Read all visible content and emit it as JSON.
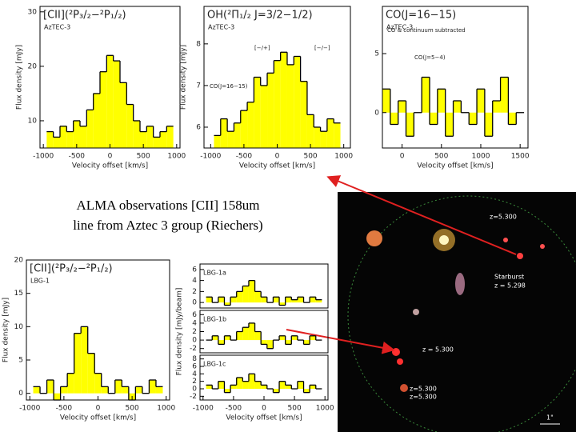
{
  "chart_data": [
    {
      "type": "step",
      "title": "[CII](²P₃/₂−²P₁/₂)",
      "subtitle": "AzTEC-3",
      "xlabel": "Velocity offset [km/s]",
      "ylabel": "Flux density [mJy]",
      "x": [
        -900,
        -800,
        -700,
        -600,
        -500,
        -400,
        -300,
        -200,
        -100,
        0,
        100,
        200,
        300,
        400,
        500,
        600,
        700,
        800,
        900
      ],
      "values": [
        8,
        7,
        9,
        8,
        10,
        9,
        12,
        15,
        19,
        22,
        21,
        17,
        13,
        10,
        8,
        9,
        7,
        8,
        9
      ],
      "xlim": [
        -1050,
        1050
      ],
      "ylim": [
        5,
        31
      ],
      "xticks": [
        -1000,
        -500,
        0,
        500,
        1000
      ],
      "yticks": [
        10,
        20,
        30
      ],
      "color": "#ffff00"
    },
    {
      "type": "step",
      "title": "OH(²Π₁/₂ J=3/2−1/2)",
      "subtitle": "AzTEC-3",
      "xlabel": "Velocity offset [km/s]",
      "ylabel": "Flux density [mJy]",
      "annotations": [
        "[−/+]",
        "[−/−]",
        "CO(J=16−15)"
      ],
      "x": [
        -900,
        -800,
        -700,
        -600,
        -500,
        -400,
        -300,
        -200,
        -100,
        0,
        100,
        200,
        300,
        400,
        500,
        600,
        700,
        800,
        900
      ],
      "values": [
        5.8,
        6.2,
        5.9,
        6.1,
        6.4,
        6.6,
        7.2,
        7.0,
        7.3,
        7.6,
        7.8,
        7.5,
        7.7,
        7.1,
        6.3,
        6.0,
        5.9,
        6.2,
        6.1
      ],
      "xlim": [
        -1100,
        1100
      ],
      "ylim": [
        5.5,
        8.9
      ],
      "xticks": [
        -1000,
        -500,
        0,
        500,
        1000
      ],
      "yticks": [
        6,
        7,
        8
      ],
      "color": "#ffff00"
    },
    {
      "type": "step",
      "title": "CO(J=16−15)",
      "subtitle": "AzTEC-3",
      "xlabel": "Velocity offset [km/s]",
      "ylabel": "",
      "annotations": [
        "CO & continuum subtracted",
        "CO(J=5−4)"
      ],
      "x": [
        -200,
        -100,
        0,
        100,
        200,
        300,
        400,
        500,
        600,
        700,
        800,
        900,
        1000,
        1100,
        1200,
        1300,
        1400,
        1500
      ],
      "values": [
        2,
        -1,
        1,
        -2,
        0,
        3,
        -1,
        2,
        -2,
        1,
        0,
        -1,
        2,
        -2,
        1,
        3,
        -1,
        0
      ],
      "xlim": [
        -250,
        1600
      ],
      "ylim": [
        -3,
        9
      ],
      "xticks": [
        0,
        500,
        1000,
        1500
      ],
      "yticks": [
        0,
        5
      ],
      "color": "#ffff00"
    },
    {
      "type": "step",
      "title": "[CII](²P₃/₂−²P₁/₂)",
      "subtitle": "LBG-1",
      "xlabel": "Velocity offset [km/s]",
      "ylabel": "Flux density [mJy]",
      "x": [
        -900,
        -800,
        -700,
        -600,
        -500,
        -400,
        -300,
        -200,
        -100,
        0,
        100,
        200,
        300,
        400,
        500,
        600,
        700,
        800,
        900
      ],
      "values": [
        1,
        0,
        2,
        -1,
        1,
        3,
        9,
        10,
        6,
        3,
        1,
        0,
        2,
        1,
        -1,
        1,
        0,
        2,
        1
      ],
      "xlim": [
        -1050,
        1050
      ],
      "ylim": [
        -1,
        20
      ],
      "xticks": [
        -1000,
        -500,
        0,
        500,
        1000
      ],
      "yticks": [
        0,
        5,
        10,
        15,
        20
      ],
      "color": "#ffff00"
    },
    {
      "type": "step",
      "title": "LBG-1a",
      "x": [
        -900,
        -800,
        -700,
        -600,
        -500,
        -400,
        -300,
        -200,
        -100,
        0,
        100,
        200,
        300,
        400,
        500,
        600,
        700,
        800,
        900
      ],
      "values": [
        1,
        0,
        1,
        -0.5,
        1,
        2,
        3,
        4,
        2,
        1,
        0,
        1,
        -0.5,
        1,
        0.5,
        1,
        0,
        1,
        0.5
      ],
      "xlim": [
        -1050,
        1050
      ],
      "ylim": [
        -1,
        7
      ],
      "yticks": [
        0,
        2,
        4,
        6
      ],
      "color": "#ffff00"
    },
    {
      "type": "step",
      "title": "LBG-1b",
      "ylabel": "Flux density [mJy/beam]",
      "x": [
        -900,
        -800,
        -700,
        -600,
        -500,
        -400,
        -300,
        -200,
        -100,
        0,
        100,
        200,
        300,
        400,
        500,
        600,
        700,
        800,
        900
      ],
      "values": [
        0,
        1,
        -1,
        1,
        0,
        2,
        3,
        4,
        2,
        -1,
        -2,
        0,
        1,
        -1,
        1,
        0,
        -1,
        1,
        0
      ],
      "xlim": [
        -1050,
        1050
      ],
      "ylim": [
        -3,
        7
      ],
      "yticks": [
        -2,
        0,
        2,
        4,
        6
      ],
      "color": "#ffff00"
    },
    {
      "type": "step",
      "title": "LBG-1c",
      "xlabel": "Velocity offset [km/s]",
      "x": [
        -900,
        -800,
        -700,
        -600,
        -500,
        -400,
        -300,
        -200,
        -100,
        0,
        100,
        200,
        300,
        400,
        500,
        600,
        700,
        800,
        900
      ],
      "values": [
        1,
        0,
        2,
        -1,
        1,
        3,
        2,
        4,
        2,
        1,
        0,
        -1,
        2,
        1,
        0,
        2,
        -1,
        1,
        0
      ],
      "xlim": [
        -1050,
        1050
      ],
      "ylim": [
        -3,
        9
      ],
      "xticks": [
        -1000,
        -500,
        0,
        500,
        1000
      ],
      "yticks": [
        -2,
        0,
        2,
        4,
        6,
        8
      ],
      "color": "#ffff00"
    }
  ],
  "caption": [
    "ALMA observations [CII] 158um",
    "line from Aztec 3 group (Riechers)"
  ],
  "image_labels": [
    "z=5.300",
    "Starburst",
    "z = 5.298",
    "z = 5.300",
    "z=5.300",
    "z=5.300",
    "1\""
  ]
}
